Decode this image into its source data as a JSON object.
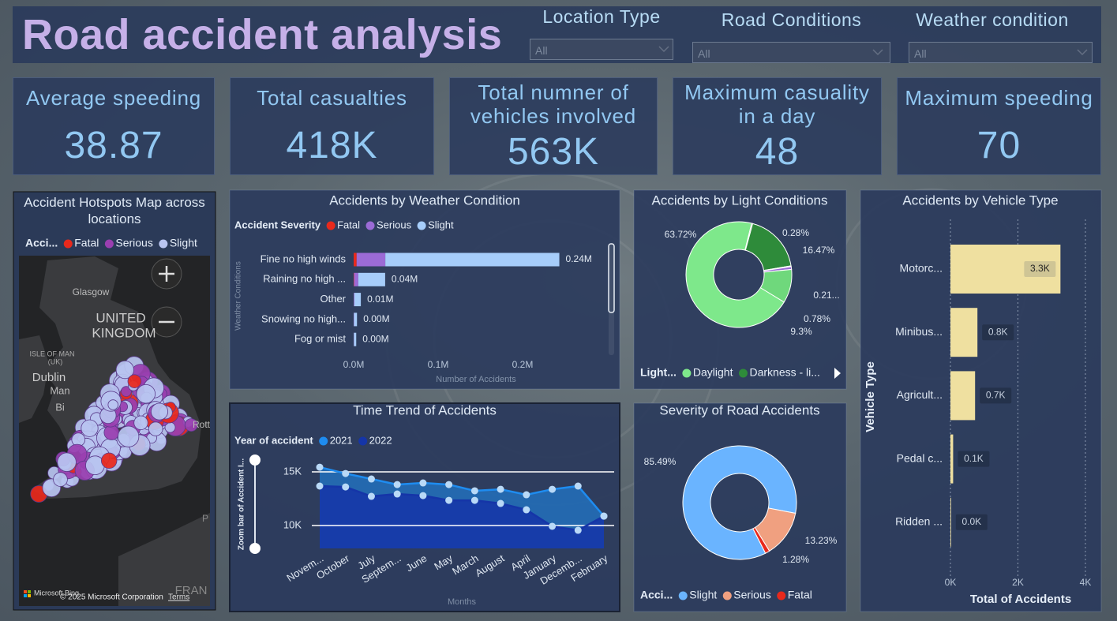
{
  "header": {
    "title": "Road accident analysis"
  },
  "slicers": [
    {
      "label": "Location Type",
      "value": "All"
    },
    {
      "label": "Road Conditions",
      "value": "All"
    },
    {
      "label": "Weather condition",
      "value": "All"
    }
  ],
  "kpis": [
    {
      "label": "Average speeding",
      "value": "38.87"
    },
    {
      "label": "Total casualties",
      "value": "418K"
    },
    {
      "label": "Total numner of vehicles involved",
      "value": "563K"
    },
    {
      "label": "Maximum casuality in a day",
      "value": "48"
    },
    {
      "label": "Maximum speeding",
      "value": "70"
    }
  ],
  "map": {
    "title": "Accident Hotspots Map across locations",
    "legend_title": "Acci...",
    "legend": [
      {
        "name": "Fatal",
        "color": "#e8291c"
      },
      {
        "name": "Serious",
        "color": "#9a3fb0"
      },
      {
        "name": "Slight",
        "color": "#b8c4f0"
      }
    ],
    "place_labels": [
      "Glasgow",
      "UNITED",
      "KINGDOM",
      "ISLE OF MAN",
      "(UK)",
      "Dublin",
      "Man",
      "Bi",
      "Rott",
      "FRAN",
      "P"
    ],
    "attribution": [
      "Microsoft Bing",
      "© 2025 Microsoft Corporation",
      "Terms"
    ]
  },
  "chart_data": [
    {
      "type": "bar",
      "orientation": "horizontal",
      "stacked": true,
      "title": "Accidents by Weather Condition",
      "legend_title": "Accident Severity",
      "categories": [
        "Fine no high winds",
        "Raining no high ...",
        "Other",
        "Snowing no high...",
        "Fog or mist"
      ],
      "series": [
        {
          "name": "Fatal",
          "color": "#e8291c",
          "values": [
            3500,
            500,
            100,
            50,
            50
          ]
        },
        {
          "name": "Serious",
          "color": "#9b6bd6",
          "values": [
            34000,
            5000,
            700,
            400,
            300
          ]
        },
        {
          "name": "Slight",
          "color": "#a6cdfa",
          "values": [
            206000,
            31800,
            7700,
            3500,
            2700
          ]
        }
      ],
      "total_labels": [
        "0.24M",
        "0.04M",
        "0.01M",
        "0.00M",
        "0.00M"
      ],
      "xlim": [
        0,
        300000
      ],
      "xticks": [
        {
          "value": 0,
          "label": "0.0M"
        },
        {
          "value": 100000,
          "label": "0.1M"
        },
        {
          "value": 200000,
          "label": "0.2M"
        }
      ],
      "xlabel": "Number of Accidents",
      "ylabel": "Weather Conditions",
      "grid": false
    },
    {
      "type": "donut",
      "title": "Accidents by Light Conditions",
      "legend_title": "Light...",
      "categories": [
        "Daylight",
        null,
        "Darkness - li...",
        null,
        null,
        null
      ],
      "values": [
        63.72,
        0.28,
        16.47,
        0.21,
        0.78,
        9.3
      ],
      "value_labels": [
        "63.72%",
        "0.28%",
        "16.47%",
        "0.21...",
        "0.78%",
        "9.3%"
      ],
      "colors": [
        "#7ee88b",
        "#3da84a",
        "#2e8b3a",
        "#6a4cc0",
        "#9b6bd6",
        "#6fd87c"
      ]
    },
    {
      "type": "bar",
      "orientation": "horizontal",
      "title": "Accidents by Vehicle Type",
      "categories": [
        "Motorc...",
        "Minibus...",
        "Agricult...",
        "Pedal c...",
        "Ridden ..."
      ],
      "values": [
        3260,
        800,
        730,
        80,
        20
      ],
      "value_labels": [
        "3.3K",
        "0.8K",
        "0.7K",
        "0.1K",
        "0.0K"
      ],
      "color": "#efe0a0",
      "xlim": [
        0,
        4000
      ],
      "xticks": [
        {
          "value": 0,
          "label": "0K"
        },
        {
          "value": 2000,
          "label": "2K"
        },
        {
          "value": 4000,
          "label": "4K"
        }
      ],
      "xlabel": "Total of Accidents",
      "ylabel": "Vehicle Type",
      "grid": true
    },
    {
      "type": "area",
      "title": "Time Trend of Accidents",
      "legend_title": "Year of accident",
      "categories": [
        "Novem...",
        "October",
        "July",
        "Septem...",
        "June",
        "May",
        "March",
        "August",
        "April",
        "January",
        "Decemb...",
        "February"
      ],
      "series": [
        {
          "name": "2021",
          "color": "#1e8cf0",
          "values": [
            15440,
            14850,
            14340,
            13820,
            13970,
            13820,
            13240,
            13380,
            12870,
            13380,
            13680,
            10880
          ]
        },
        {
          "name": "2022",
          "color": "#1535a8",
          "values": [
            13680,
            13600,
            12720,
            12940,
            12790,
            12350,
            12350,
            12060,
            11470,
            9930,
            9560,
            10880
          ]
        }
      ],
      "ylim": [
        7870,
        16180
      ],
      "yticks": [
        {
          "value": 10000,
          "label": "10K"
        },
        {
          "value": 15000,
          "label": "15K"
        }
      ],
      "xlabel": "Months",
      "zoom_label": "Zoom bar of Accident I...",
      "grid": true
    },
    {
      "type": "donut",
      "title": "Severity of Road Accidents",
      "legend_title": "Acci...",
      "categories": [
        "Slight",
        "Serious",
        "Fatal"
      ],
      "values": [
        85.49,
        13.23,
        1.28
      ],
      "value_labels": [
        "85.49%",
        "13.23%",
        "1.28%"
      ],
      "colors": [
        "#6ab4ff",
        "#f0a080",
        "#e8291c"
      ]
    }
  ]
}
